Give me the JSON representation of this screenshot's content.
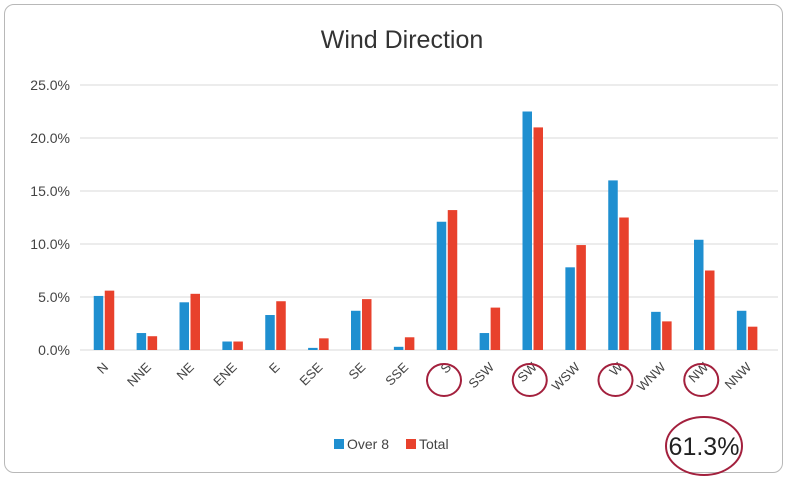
{
  "chart_data": {
    "type": "bar",
    "title": "Wind Direction",
    "xlabel": "",
    "ylabel": "",
    "ylim": [
      0,
      25
    ],
    "ytick_labels": [
      "0.0%",
      "5.0%",
      "10.0%",
      "15.0%",
      "20.0%",
      "25.0%"
    ],
    "grid": true,
    "legend": "bottom",
    "categories": [
      "N",
      "NNE",
      "NE",
      "ENE",
      "E",
      "ESE",
      "SE",
      "SSE",
      "S",
      "SSW",
      "SW",
      "WSW",
      "W",
      "WNW",
      "NW",
      "NNW"
    ],
    "series": [
      {
        "name": "Over 8",
        "color": "#1f8fd0",
        "values": [
          5.1,
          1.6,
          4.5,
          0.8,
          3.3,
          0.2,
          3.7,
          0.3,
          12.1,
          1.6,
          22.5,
          7.8,
          16.0,
          3.6,
          10.4,
          3.7
        ]
      },
      {
        "name": "Total",
        "color": "#e8412c",
        "values": [
          5.6,
          1.3,
          5.3,
          0.8,
          4.6,
          1.1,
          4.8,
          1.2,
          13.2,
          4.0,
          21.0,
          9.9,
          12.5,
          2.7,
          7.5,
          2.2
        ]
      }
    ],
    "annotations": {
      "circled_categories": [
        "S",
        "SW",
        "W",
        "NW"
      ],
      "circle_color": "#a3203d",
      "total_note": "61.3%"
    }
  }
}
